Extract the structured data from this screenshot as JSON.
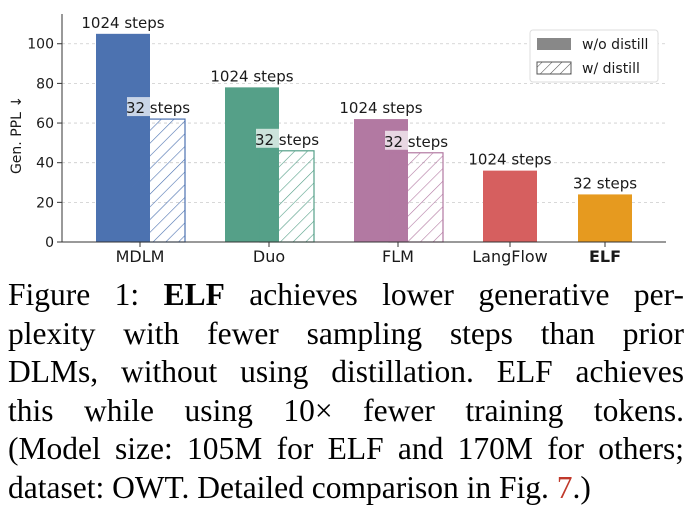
{
  "chart_data": {
    "type": "bar",
    "ylabel": "Gen. PPL ↓",
    "ylim": [
      0,
      115
    ],
    "yticks": [
      0,
      20,
      40,
      60,
      80,
      100
    ],
    "grid": "horizontal dashed",
    "legend_position": "top-right",
    "legend": [
      {
        "name": "w/o distill",
        "style": "solid",
        "color": "#888888"
      },
      {
        "name": "w/ distill",
        "style": "hatched",
        "color": "#888888"
      }
    ],
    "categories": [
      "MDLM",
      "Duo",
      "FLM",
      "LangFlow",
      "ELF"
    ],
    "bold_categories": [
      "ELF"
    ],
    "colors": {
      "MDLM": "#4c72b0",
      "Duo": "#55a088",
      "FLM": "#b279a2",
      "LangFlow": "#d65f5f",
      "ELF": "#e69a1f"
    },
    "bars": [
      {
        "category": "MDLM",
        "series": "w/o distill",
        "value": 105,
        "label": "1024 steps"
      },
      {
        "category": "MDLM",
        "series": "w/ distill",
        "value": 62,
        "label": "32 steps"
      },
      {
        "category": "Duo",
        "series": "w/o distill",
        "value": 78,
        "label": "1024 steps"
      },
      {
        "category": "Duo",
        "series": "w/ distill",
        "value": 46,
        "label": "32 steps"
      },
      {
        "category": "FLM",
        "series": "w/o distill",
        "value": 62,
        "label": "1024 steps"
      },
      {
        "category": "FLM",
        "series": "w/ distill",
        "value": 45,
        "label": "32 steps"
      },
      {
        "category": "LangFlow",
        "series": "w/o distill",
        "value": 36,
        "label": "1024 steps"
      },
      {
        "category": "ELF",
        "series": "w/o distill",
        "value": 24,
        "label": "32 steps"
      }
    ]
  },
  "caption": {
    "line1_a": "Figure 1: ",
    "line1_b": "ELF",
    "line1_c": " achieves lower generative per-",
    "line2": "plexity with fewer sampling steps than prior",
    "line3": "DLMs, without using distillation. ELF achieves",
    "line4": "this while using 10× fewer training tokens.",
    "line5": "(Model size: 105M for ELF and 170M for others;",
    "line6_a": "dataset: OWT. Detailed comparison in Fig. ",
    "line6_ref": "7",
    "line6_b": ".)"
  }
}
